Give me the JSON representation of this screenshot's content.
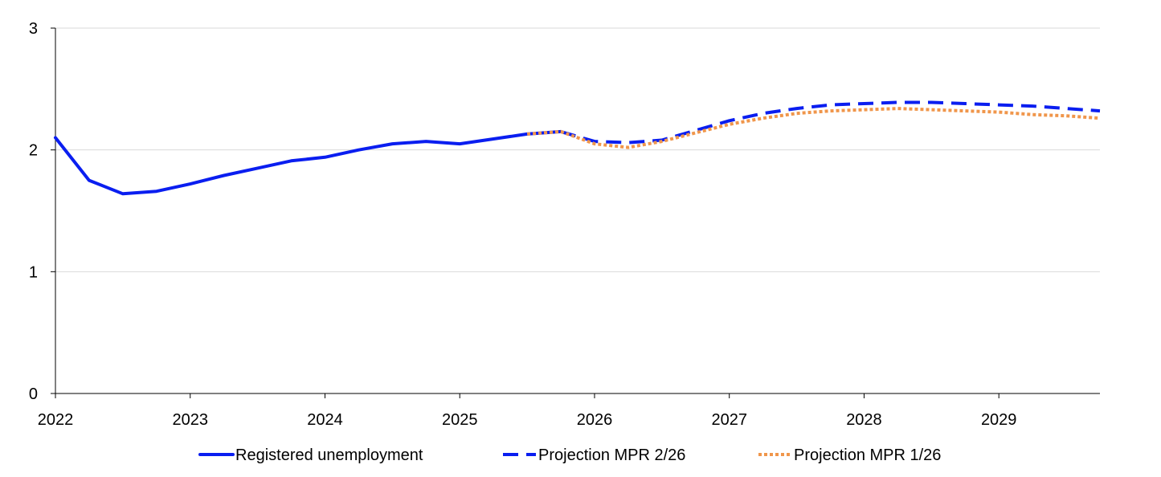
{
  "chart_data": {
    "type": "line",
    "title": "",
    "xlabel": "",
    "ylabel": "",
    "xlim": [
      2022,
      2029.75
    ],
    "ylim": [
      0,
      3
    ],
    "x_ticks": [
      "2022",
      "2023",
      "2024",
      "2025",
      "2026",
      "2027",
      "2028",
      "2029"
    ],
    "y_ticks": [
      "0",
      "1",
      "2",
      "3"
    ],
    "grid": "horizontal",
    "legend_position": "bottom",
    "series": [
      {
        "name": "Registered unemployment",
        "color": "#0a1ef0",
        "style": "solid",
        "x": [
          2022.0,
          2022.25,
          2022.5,
          2022.75,
          2023.0,
          2023.25,
          2023.5,
          2023.75,
          2024.0,
          2024.25,
          2024.5,
          2024.75,
          2025.0,
          2025.25,
          2025.5,
          2025.75
        ],
        "y": [
          2.1,
          1.75,
          1.64,
          1.66,
          1.72,
          1.79,
          1.85,
          1.91,
          1.94,
          2.0,
          2.05,
          2.07,
          2.05,
          2.09,
          2.13,
          2.15
        ]
      },
      {
        "name": "Projection MPR 2/26",
        "color": "#0a1ef0",
        "style": "dashed",
        "x": [
          2025.75,
          2026.0,
          2026.25,
          2026.5,
          2026.75,
          2027.0,
          2027.25,
          2027.5,
          2027.75,
          2028.0,
          2028.25,
          2028.5,
          2028.75,
          2029.0,
          2029.25,
          2029.5,
          2029.75
        ],
        "y": [
          2.15,
          2.07,
          2.06,
          2.08,
          2.16,
          2.24,
          2.3,
          2.34,
          2.37,
          2.38,
          2.39,
          2.39,
          2.38,
          2.37,
          2.36,
          2.34,
          2.32
        ]
      },
      {
        "name": "Projection MPR 1/26",
        "color": "#f0964b",
        "style": "dotted",
        "x": [
          2025.5,
          2025.75,
          2026.0,
          2026.25,
          2026.5,
          2026.75,
          2027.0,
          2027.25,
          2027.5,
          2027.75,
          2028.0,
          2028.25,
          2028.5,
          2028.75,
          2029.0,
          2029.25,
          2029.5,
          2029.75
        ],
        "y": [
          2.13,
          2.15,
          2.05,
          2.02,
          2.07,
          2.14,
          2.21,
          2.26,
          2.3,
          2.32,
          2.33,
          2.34,
          2.33,
          2.32,
          2.31,
          2.29,
          2.28,
          2.26
        ]
      }
    ]
  }
}
